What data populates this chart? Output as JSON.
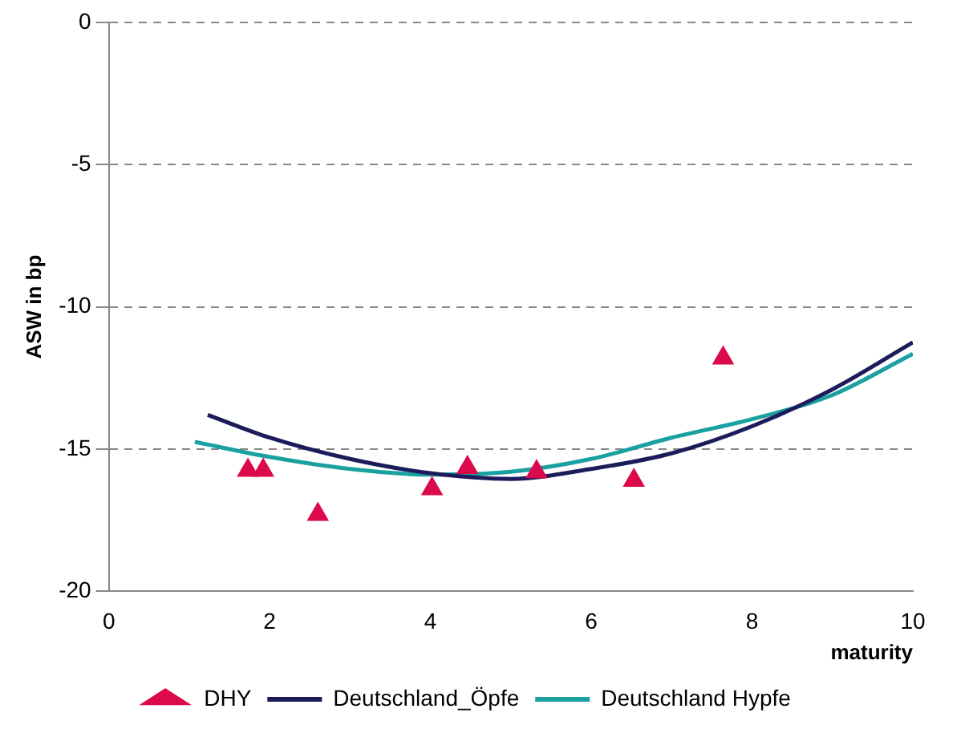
{
  "chart_data": {
    "type": "scatter",
    "xlabel": "maturity",
    "ylabel": "ASW in bp",
    "xlim": [
      0,
      10
    ],
    "xticks": [
      0,
      2,
      4,
      6,
      8,
      10
    ],
    "ylim": [
      -20,
      0
    ],
    "yticks": [
      -20,
      -15,
      -10,
      -5,
      0
    ],
    "grid": "y",
    "legend": "bottom",
    "series": [
      {
        "name": "DHY",
        "marker": "triangle",
        "color": "#dc0a4a",
        "x": [
          1.73,
          1.92,
          2.6,
          4.02,
          4.46,
          5.32,
          6.53,
          7.64
        ],
        "values": [
          -15.75,
          -15.75,
          -17.3,
          -16.4,
          -15.65,
          -15.8,
          -16.1,
          -11.8
        ]
      },
      {
        "name": "Deutschland_Öpfe",
        "type": "line",
        "marker": "none",
        "color": "#1c1c5c",
        "x": [
          1.23,
          2,
          3,
          4,
          5,
          6,
          7,
          8,
          9,
          10
        ],
        "values": [
          -13.8,
          -14.6,
          -15.35,
          -15.85,
          -16.05,
          -15.7,
          -15.15,
          -14.2,
          -12.9,
          -11.25
        ]
      },
      {
        "name": "Deutschland Hypfe",
        "type": "line",
        "marker": "none",
        "color": "#1aa0a0",
        "x": [
          1.07,
          2,
          3,
          4,
          5,
          6,
          7,
          8,
          9,
          10
        ],
        "values": [
          -14.75,
          -15.28,
          -15.7,
          -15.9,
          -15.8,
          -15.35,
          -14.6,
          -13.95,
          -13.1,
          -11.65
        ]
      }
    ]
  }
}
